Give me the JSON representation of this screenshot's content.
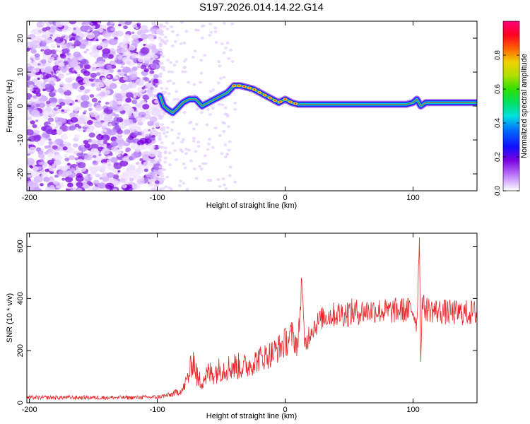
{
  "title": "S197.2026.014.14.22.G14",
  "chart_data": [
    {
      "type": "heatmap",
      "xlabel": "Height of straight line (km)",
      "ylabel": "Frequency (Hz)",
      "xlim": [
        -202,
        150
      ],
      "ylim": [
        -25,
        25
      ],
      "xticks": [
        -200,
        -100,
        0,
        100
      ],
      "xtick_labels": [
        "-200",
        "-100",
        "0",
        "100"
      ],
      "yticks": [
        -20,
        -10,
        0,
        10,
        20
      ],
      "ytick_labels": [
        "-20",
        "-10",
        "0",
        "10",
        "20"
      ],
      "ridge": {
        "x": [
          -98,
          -95,
          -92,
          -88,
          -85,
          -80,
          -75,
          -70,
          -65,
          -60,
          -55,
          -50,
          -45,
          -40,
          -35,
          -30,
          -25,
          -20,
          -15,
          -10,
          -5,
          0,
          5,
          10,
          20,
          40,
          60,
          80,
          95,
          100,
          103,
          106,
          110,
          130,
          150
        ],
        "freq": [
          3,
          0,
          -1,
          -2,
          -1,
          1,
          2,
          2,
          0,
          1,
          2,
          3,
          4,
          6,
          6,
          5.5,
          5,
          4,
          3,
          2,
          1,
          2,
          1,
          0.5,
          0.5,
          0.5,
          0.5,
          0.5,
          0.5,
          1,
          2,
          0,
          1,
          1,
          1
        ]
      },
      "colorbar": {
        "label": "Normalized spectral amplitude",
        "range": [
          0,
          1
        ],
        "ticks": [
          0.0,
          0.2,
          0.4,
          0.6,
          0.8
        ],
        "tick_labels": [
          "0.0",
          "0.2",
          "0.4",
          "0.6",
          "0.8"
        ]
      }
    },
    {
      "type": "line",
      "xlabel": "Height of straight line (km)",
      "ylabel": "SNR (10 * v/v)",
      "xlim": [
        -202,
        150
      ],
      "ylim": [
        0,
        650
      ],
      "xticks": [
        -200,
        -100,
        0,
        100
      ],
      "xtick_labels": [
        "-200",
        "-100",
        "0",
        "100"
      ],
      "yticks": [
        0,
        200,
        400,
        600
      ],
      "ytick_labels": [
        "0",
        "200",
        "400",
        "600"
      ],
      "series": [
        {
          "name": "SNR",
          "color": "#e8282a",
          "x": [
            -202,
            -180,
            -150,
            -120,
            -100,
            -90,
            -80,
            -75,
            -72,
            -68,
            -60,
            -50,
            -40,
            -30,
            -20,
            -10,
            -5,
            0,
            5,
            10,
            12,
            13,
            15,
            20,
            30,
            40,
            50,
            60,
            70,
            80,
            90,
            100,
            103,
            105,
            106,
            107,
            110,
            120,
            130,
            140,
            150
          ],
          "y": [
            20,
            20,
            20,
            20,
            22,
            30,
            50,
            110,
            170,
            80,
            110,
            130,
            140,
            140,
            170,
            190,
            210,
            230,
            260,
            220,
            380,
            500,
            210,
            280,
            330,
            340,
            345,
            350,
            355,
            350,
            355,
            355,
            300,
            640,
            150,
            380,
            360,
            350,
            345,
            345,
            345
          ],
          "noise": [
            8,
            8,
            8,
            8,
            8,
            10,
            18,
            45,
            60,
            40,
            50,
            50,
            55,
            50,
            50,
            55,
            55,
            60,
            60,
            50,
            50,
            50,
            50,
            45,
            45,
            50,
            55,
            50,
            50,
            50,
            50,
            50,
            40,
            20,
            20,
            40,
            50,
            50,
            50,
            50,
            50
          ]
        }
      ]
    }
  ]
}
